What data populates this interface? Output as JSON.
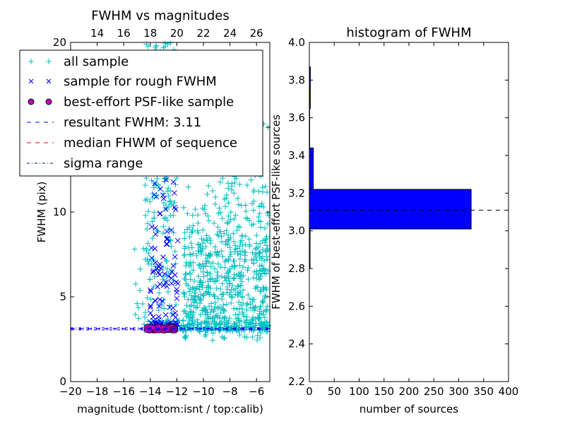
{
  "chart_data": [
    {
      "type": "scatter",
      "title": "FWHM vs magnitudes",
      "xlabel": "magnitude (bottom:isnt / top:calib)",
      "ylabel": "FWHM (pix)",
      "xlim": [
        -20,
        -5
      ],
      "ylim": [
        0,
        20
      ],
      "x_ticks": [
        "−20",
        "−18",
        "−16",
        "−14",
        "−12",
        "−10",
        "−8",
        "−6"
      ],
      "x_tick_values": [
        -20,
        -18,
        -16,
        -14,
        -12,
        -10,
        -8,
        -6
      ],
      "y_ticks": [
        "0",
        "5",
        "10",
        "15",
        "20"
      ],
      "y_tick_values": [
        0,
        5,
        10,
        15,
        20
      ],
      "top_x_ticks": [
        "14",
        "16",
        "18",
        "20",
        "22",
        "24",
        "26"
      ],
      "top_x_tick_values": [
        14,
        16,
        18,
        20,
        22,
        24,
        26
      ],
      "top_x_offset": 32,
      "lines": {
        "resultant_fwhm": 3.11,
        "median_fwhm": 3.11,
        "sigma_range": [
          3.05,
          3.17
        ]
      },
      "legend": {
        "placement": "top-left",
        "entries": [
          {
            "label": "all sample",
            "marker": "+",
            "color": "#00bfbf"
          },
          {
            "label": "sample for rough FWHM",
            "marker": "x",
            "color": "#0000ff"
          },
          {
            "label": "best-effort PSF-like sample",
            "marker": "o",
            "color": "#bf00bf"
          },
          {
            "label": "resultant FWHM: 3.11",
            "marker": "dashed",
            "color": "#0000ff"
          },
          {
            "label": "median FHWM of sequence",
            "marker": "dashed",
            "color": "#ff0000"
          },
          {
            "label": "sigma range",
            "marker": "dashdot",
            "color": "#0000ff"
          }
        ]
      }
    },
    {
      "type": "bar",
      "orientation": "horizontal",
      "title": "histogram of FWHM",
      "xlabel": "number of sources",
      "ylabel": "FWHM of best-effort PSF-like sources",
      "xlim": [
        0,
        400
      ],
      "ylim": [
        2.2,
        4.0
      ],
      "x_ticks": [
        "0",
        "50",
        "100",
        "150",
        "200",
        "250",
        "300",
        "350",
        "400"
      ],
      "x_tick_values": [
        0,
        50,
        100,
        150,
        200,
        250,
        300,
        350,
        400
      ],
      "y_ticks": [
        "2.2",
        "2.4",
        "2.6",
        "2.8",
        "3.0",
        "3.2",
        "3.4",
        "3.6",
        "3.8",
        "4.0"
      ],
      "y_tick_values": [
        2.2,
        2.4,
        2.6,
        2.8,
        3.0,
        3.2,
        3.4,
        3.6,
        3.8,
        4.0
      ],
      "bins": [
        {
          "from": 2.8,
          "to": 3.01,
          "count": 1
        },
        {
          "from": 3.01,
          "to": 3.22,
          "count": 325
        },
        {
          "from": 3.22,
          "to": 3.44,
          "count": 8
        },
        {
          "from": 3.44,
          "to": 3.65,
          "count": 0
        },
        {
          "from": 3.65,
          "to": 3.87,
          "count": 2
        }
      ],
      "bar_color": "#0000ff",
      "reference_line": 3.11
    }
  ]
}
